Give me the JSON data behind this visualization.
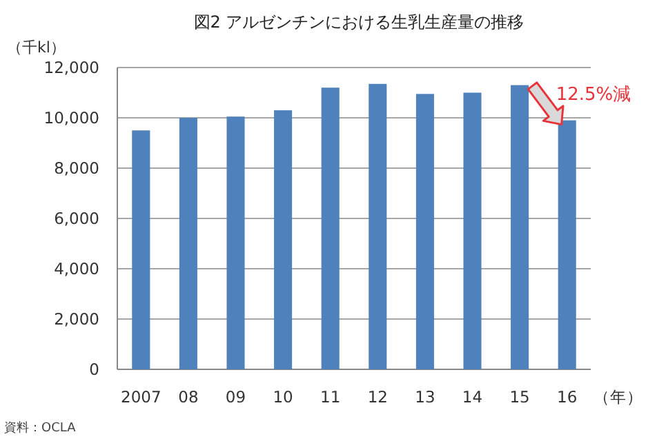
{
  "chart_data": {
    "type": "bar",
    "title": "図2 アルゼンチンにおける生乳生産量の推移",
    "ylabel": "（千kl）",
    "xlabel": "（年）",
    "categories": [
      "2007",
      "08",
      "09",
      "10",
      "11",
      "12",
      "13",
      "14",
      "15",
      "16"
    ],
    "series": [
      {
        "color": "#4f81bd",
        "values": [
          9500,
          10000,
          10050,
          10300,
          11200,
          11350,
          10950,
          11000,
          11300,
          9900
        ]
      }
    ],
    "ylim": [
      0,
      12000
    ],
    "yticks": [
      {
        "value": 0,
        "label": "0"
      },
      {
        "value": 2000,
        "label": "2,000"
      },
      {
        "value": 4000,
        "label": "4,000"
      },
      {
        "value": 6000,
        "label": "6,000"
      },
      {
        "value": 8000,
        "label": "8,000"
      },
      {
        "value": 10000,
        "label": "10,000"
      },
      {
        "value": 12000,
        "label": "12,000"
      }
    ],
    "grid": "y",
    "annotations": [
      {
        "text": "12.5%減",
        "x": "16",
        "y": 9900
      },
      "資料：OCLA"
    ]
  }
}
